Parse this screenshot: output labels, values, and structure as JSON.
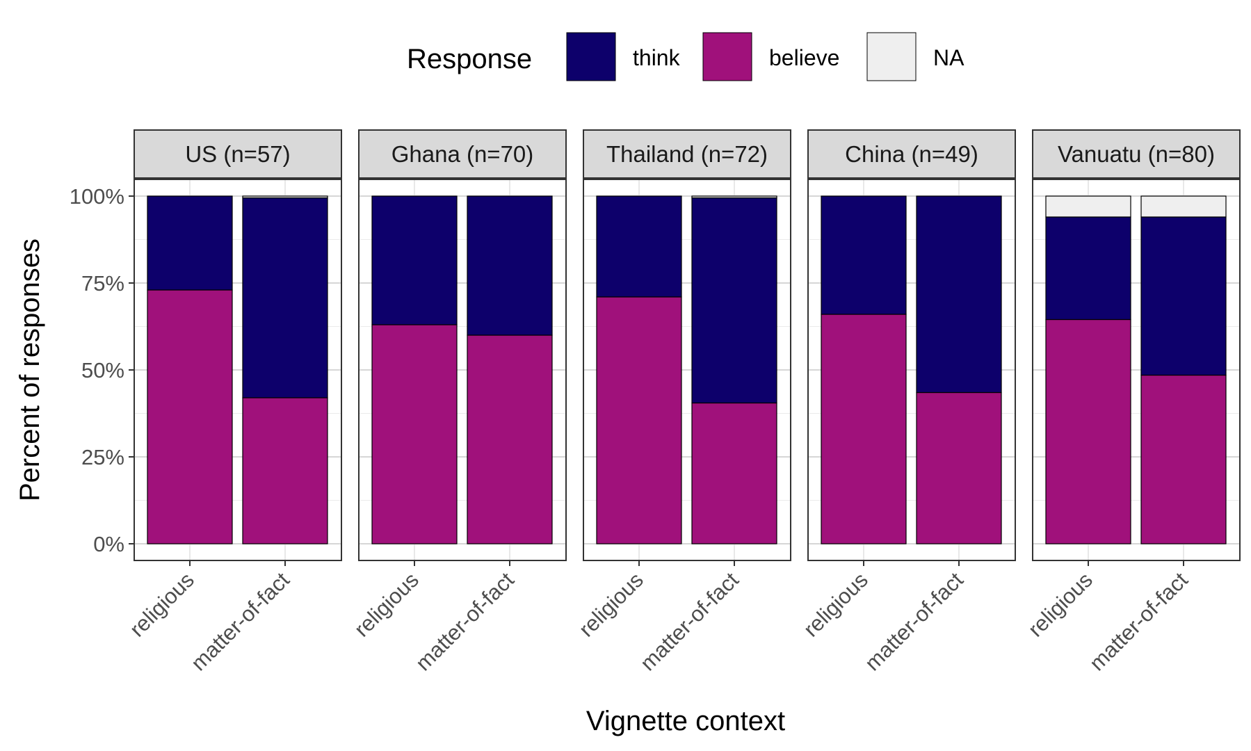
{
  "chart_data": {
    "type": "bar",
    "stacked": true,
    "legend": {
      "title": "Response",
      "position": "top",
      "items": [
        {
          "name": "think",
          "color": "#0D006B"
        },
        {
          "name": "believe",
          "color": "#A0117B"
        },
        {
          "name": "NA",
          "color": "#EFEFEF"
        }
      ]
    },
    "xlabel": "Vignette context",
    "ylabel": "Percent of responses",
    "ylim": [
      0,
      1
    ],
    "y_ticks": [
      {
        "value": 0,
        "label": "0%"
      },
      {
        "value": 0.25,
        "label": "25%"
      },
      {
        "value": 0.5,
        "label": "50%"
      },
      {
        "value": 0.75,
        "label": "75%"
      },
      {
        "value": 1,
        "label": "100%"
      }
    ],
    "categories": [
      "religious",
      "matter-of-fact"
    ],
    "grid": true,
    "facets": [
      {
        "label": "US (n=57)",
        "bars": [
          {
            "category": "religious",
            "believe": 0.73,
            "think": 0.27,
            "NA": 0
          },
          {
            "category": "matter-of-fact",
            "believe": 0.42,
            "think": 0.575,
            "NA": 0.005
          }
        ]
      },
      {
        "label": "Ghana (n=70)",
        "bars": [
          {
            "category": "religious",
            "believe": 0.63,
            "think": 0.37,
            "NA": 0
          },
          {
            "category": "matter-of-fact",
            "believe": 0.6,
            "think": 0.4,
            "NA": 0
          }
        ]
      },
      {
        "label": "Thailand (n=72)",
        "bars": [
          {
            "category": "religious",
            "believe": 0.71,
            "think": 0.29,
            "NA": 0
          },
          {
            "category": "matter-of-fact",
            "believe": 0.405,
            "think": 0.59,
            "NA": 0.005
          }
        ]
      },
      {
        "label": "China (n=49)",
        "bars": [
          {
            "category": "religious",
            "believe": 0.66,
            "think": 0.34,
            "NA": 0
          },
          {
            "category": "matter-of-fact",
            "believe": 0.435,
            "think": 0.565,
            "NA": 0
          }
        ]
      },
      {
        "label": "Vanuatu (n=80)",
        "bars": [
          {
            "category": "religious",
            "believe": 0.645,
            "think": 0.295,
            "NA": 0.06
          },
          {
            "category": "matter-of-fact",
            "believe": 0.485,
            "think": 0.455,
            "NA": 0.06
          }
        ]
      }
    ]
  }
}
